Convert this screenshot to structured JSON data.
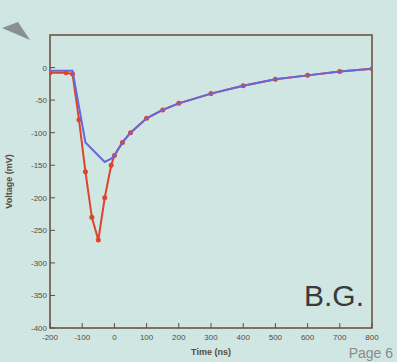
{
  "chart_data": {
    "type": "line",
    "x_label": "Time (ns)",
    "y_label": "Voltage (mV)",
    "x": [
      -200,
      -150,
      -130,
      -110,
      -90,
      -70,
      -50,
      -30,
      -10,
      0,
      25,
      50,
      100,
      150,
      200,
      300,
      400,
      500,
      600,
      700,
      800
    ],
    "series": [
      {
        "color": "#e0432c",
        "marker": "circle",
        "line_style": "solid",
        "values": [
          -8,
          -8,
          -10,
          -80,
          -160,
          -230,
          -265,
          -200,
          -150,
          -135,
          -115,
          -100,
          -78,
          -65,
          -55,
          -40,
          -28,
          -18,
          -12,
          -6,
          -2
        ]
      },
      {
        "color": "#6868d8",
        "marker": "none",
        "line_style": "solid",
        "values": [
          -5,
          -5,
          -5,
          -60,
          -115,
          -125,
          -135,
          -145,
          -140,
          -135,
          -115,
          -100,
          -78,
          -65,
          -55,
          -40,
          -28,
          -18,
          -12,
          -6,
          -2
        ]
      }
    ],
    "xlim": [
      -200,
      800
    ],
    "xticks": [
      -200,
      -100,
      0,
      100,
      200,
      300,
      400,
      500,
      600,
      700,
      800
    ],
    "ylim": [
      -400,
      50
    ],
    "yticks": [
      -400,
      -350,
      -300,
      -250,
      -200,
      -150,
      -100,
      -50,
      0
    ],
    "grid": false,
    "annotations": [
      {
        "text": "B.G."
      },
      {
        "text": "Page 6"
      }
    ]
  }
}
